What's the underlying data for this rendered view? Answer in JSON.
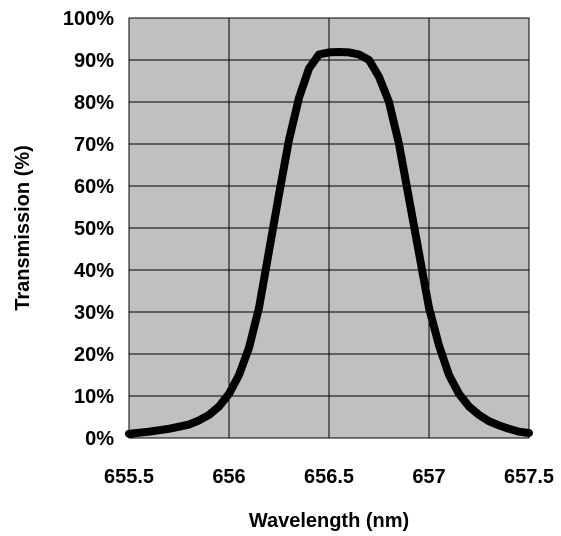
{
  "chart_data": {
    "type": "line",
    "title": "",
    "xlabel": "Wavelength (nm)",
    "ylabel": "Transmission (%)",
    "xlim": [
      655.5,
      657.5
    ],
    "ylim": [
      0,
      100
    ],
    "x_ticks": [
      "655.5",
      "656",
      "656.5",
      "657",
      "657.5"
    ],
    "y_ticks": [
      "0%",
      "10%",
      "20%",
      "30%",
      "40%",
      "50%",
      "60%",
      "70%",
      "80%",
      "90%",
      "100%"
    ],
    "grid": true,
    "legend": "none",
    "series": [
      {
        "x": [
          655.5,
          655.6,
          655.7,
          655.8,
          655.85,
          655.9,
          655.95,
          656.0,
          656.05,
          656.1,
          656.15,
          656.2,
          656.25,
          656.3,
          656.35,
          656.4,
          656.45,
          656.5,
          656.55,
          656.6,
          656.65,
          656.7,
          656.75,
          656.8,
          656.85,
          656.9,
          656.95,
          657.0,
          657.05,
          657.1,
          657.15,
          657.2,
          657.25,
          657.3,
          657.35,
          657.4,
          657.45,
          657.5
        ],
        "values": [
          1,
          1.5,
          2.2,
          3.2,
          4.2,
          5.5,
          7.5,
          10.5,
          15,
          21.5,
          31,
          44.5,
          58,
          71,
          81,
          88,
          91.3,
          91.8,
          91.9,
          91.8,
          91.3,
          90,
          86,
          80,
          70,
          57,
          44,
          31,
          22,
          15,
          10.5,
          7.5,
          5.5,
          4,
          3,
          2.2,
          1.5,
          1.2
        ],
        "color": "#000000"
      }
    ],
    "colors": {
      "plot_background": "#c0c0c0",
      "grid": "#000000",
      "line": "#000000"
    }
  }
}
